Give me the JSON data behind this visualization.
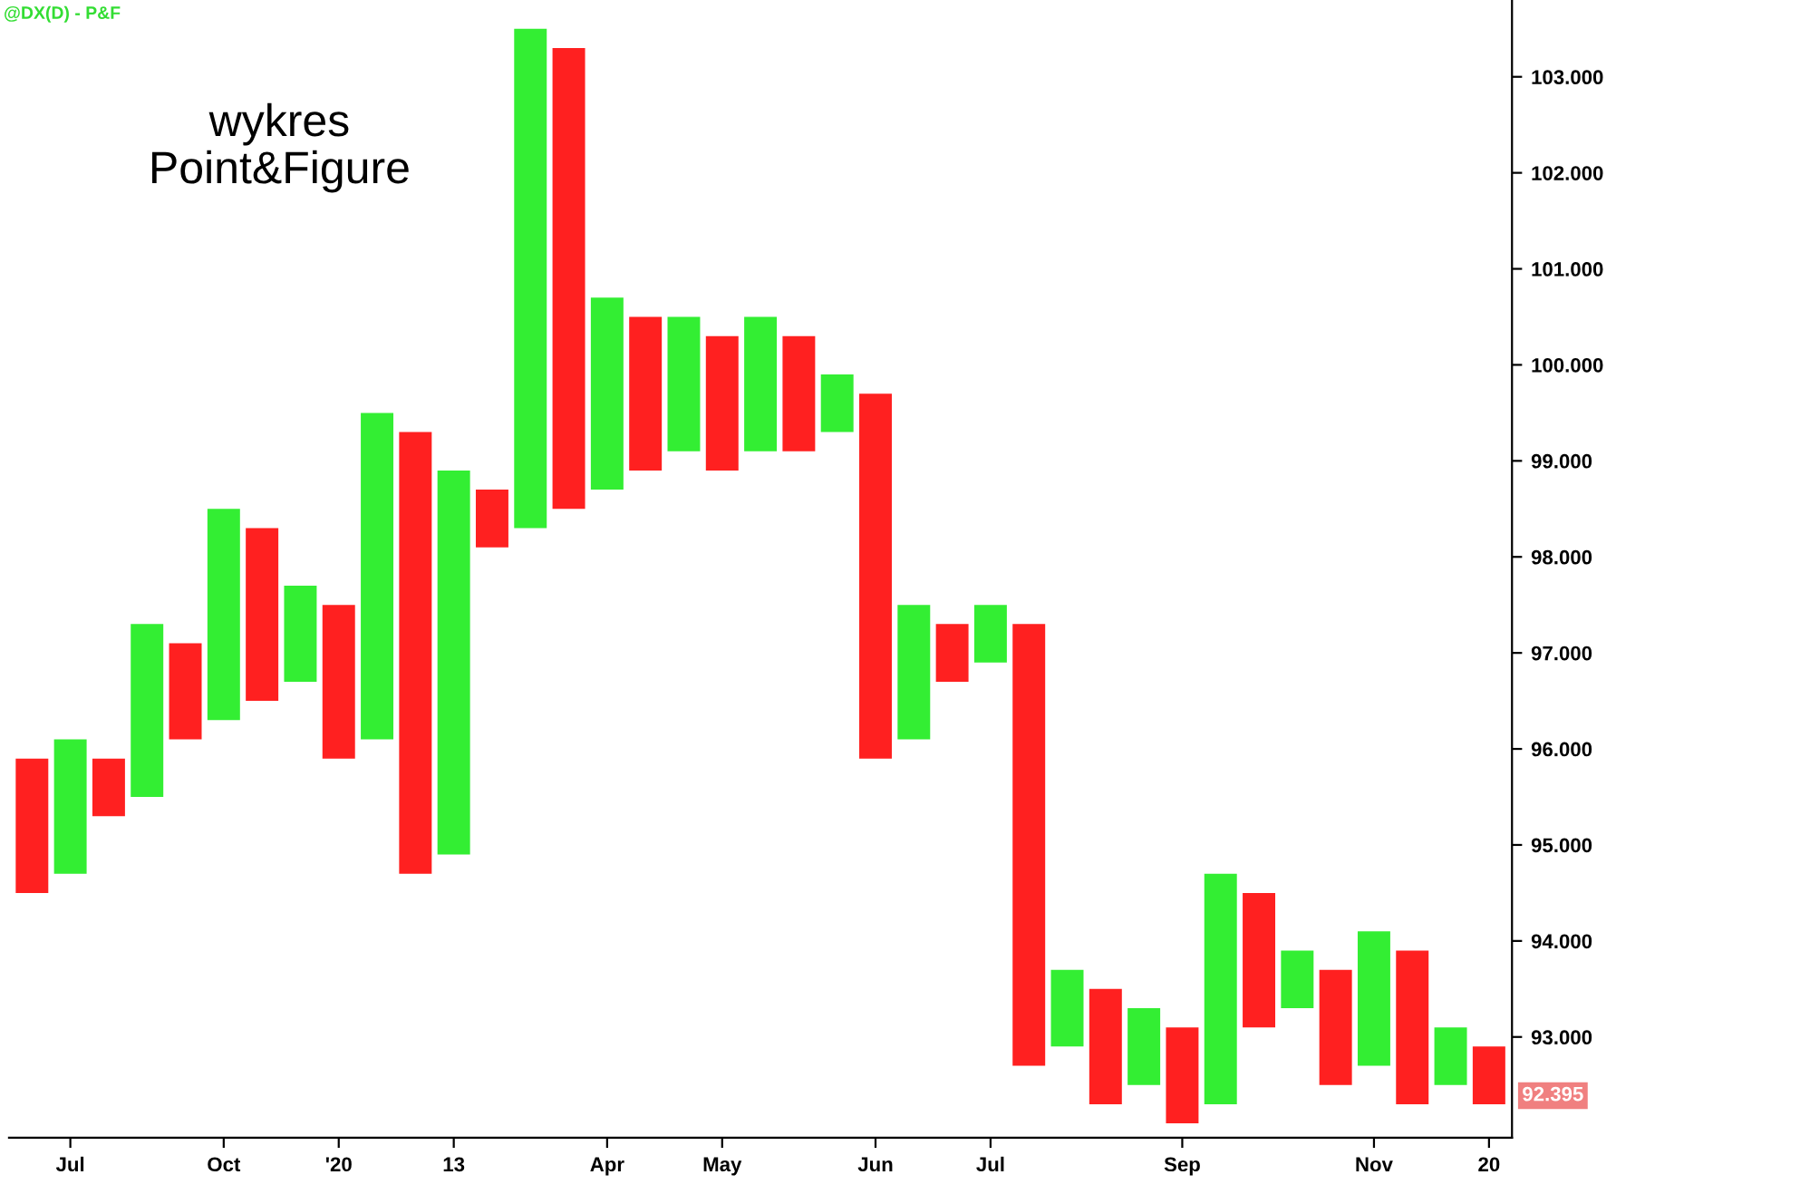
{
  "chart_data": {
    "type": "bar",
    "title": "wykres\nPoint&Figure",
    "categories": [
      null,
      "Jul",
      null,
      null,
      null,
      "Oct",
      null,
      null,
      "'20",
      null,
      null,
      "13",
      null,
      null,
      null,
      "Apr",
      null,
      null,
      "May",
      null,
      null,
      null,
      "Jun",
      null,
      null,
      "Jul",
      null,
      null,
      null,
      null,
      "Sep",
      null,
      null,
      null,
      null,
      "Nov",
      null,
      null,
      "20"
    ],
    "base": [
      94.5,
      94.7,
      95.3,
      95.5,
      96.1,
      96.3,
      96.5,
      96.7,
      95.9,
      96.1,
      94.7,
      94.9,
      98.1,
      98.3,
      98.5,
      98.7,
      98.9,
      99.1,
      98.9,
      99.1,
      99.1,
      99.3,
      95.9,
      96.1,
      96.7,
      96.9,
      92.7,
      92.9,
      92.3,
      92.5,
      92.1,
      92.3,
      93.1,
      93.3,
      92.5,
      92.7,
      92.3,
      92.5,
      92.3
    ],
    "values": [
      1.4,
      1.4,
      0.6,
      1.8,
      1.0,
      2.2,
      1.8,
      1.0,
      1.6,
      3.4,
      4.6,
      4.0,
      0.6,
      5.2,
      4.8,
      2.0,
      1.6,
      1.4,
      1.4,
      1.4,
      1.2,
      0.6,
      3.8,
      1.4,
      0.6,
      0.6,
      4.6,
      0.8,
      1.2,
      0.8,
      1.0,
      2.4,
      1.4,
      0.6,
      1.2,
      1.4,
      1.6,
      0.6,
      0.6
    ],
    "colors": [
      "#ff2020",
      "#33ee33",
      "#ff2020",
      "#33ee33",
      "#ff2020",
      "#33ee33",
      "#ff2020",
      "#33ee33",
      "#ff2020",
      "#33ee33",
      "#ff2020",
      "#33ee33",
      "#ff2020",
      "#33ee33",
      "#ff2020",
      "#33ee33",
      "#ff2020",
      "#33ee33",
      "#ff2020",
      "#33ee33",
      "#ff2020",
      "#33ee33",
      "#ff2020",
      "#33ee33",
      "#ff2020",
      "#33ee33",
      "#ff2020",
      "#33ee33",
      "#ff2020",
      "#33ee33",
      "#ff2020",
      "#33ee33",
      "#ff2020",
      "#33ee33",
      "#ff2020",
      "#33ee33",
      "#ff2020",
      "#33ee33",
      "#ff2020"
    ],
    "ylim": [
      91.95,
      103.8
    ],
    "yticks": [
      {
        "value": 93,
        "label": "93.000"
      },
      {
        "value": 94,
        "label": "94.000"
      },
      {
        "value": 95,
        "label": "95.000"
      },
      {
        "value": 96,
        "label": "96.000"
      },
      {
        "value": 97,
        "label": "97.000"
      },
      {
        "value": 98,
        "label": "98.000"
      },
      {
        "value": 99,
        "label": "99.000"
      },
      {
        "value": 100,
        "label": "100.000"
      },
      {
        "value": 101,
        "label": "101.000"
      },
      {
        "value": 102,
        "label": "102.000"
      },
      {
        "value": 103,
        "label": "103.000"
      }
    ],
    "annotations": [
      "@DX(D) - P&F",
      "92.395"
    ],
    "grid": false
  }
}
